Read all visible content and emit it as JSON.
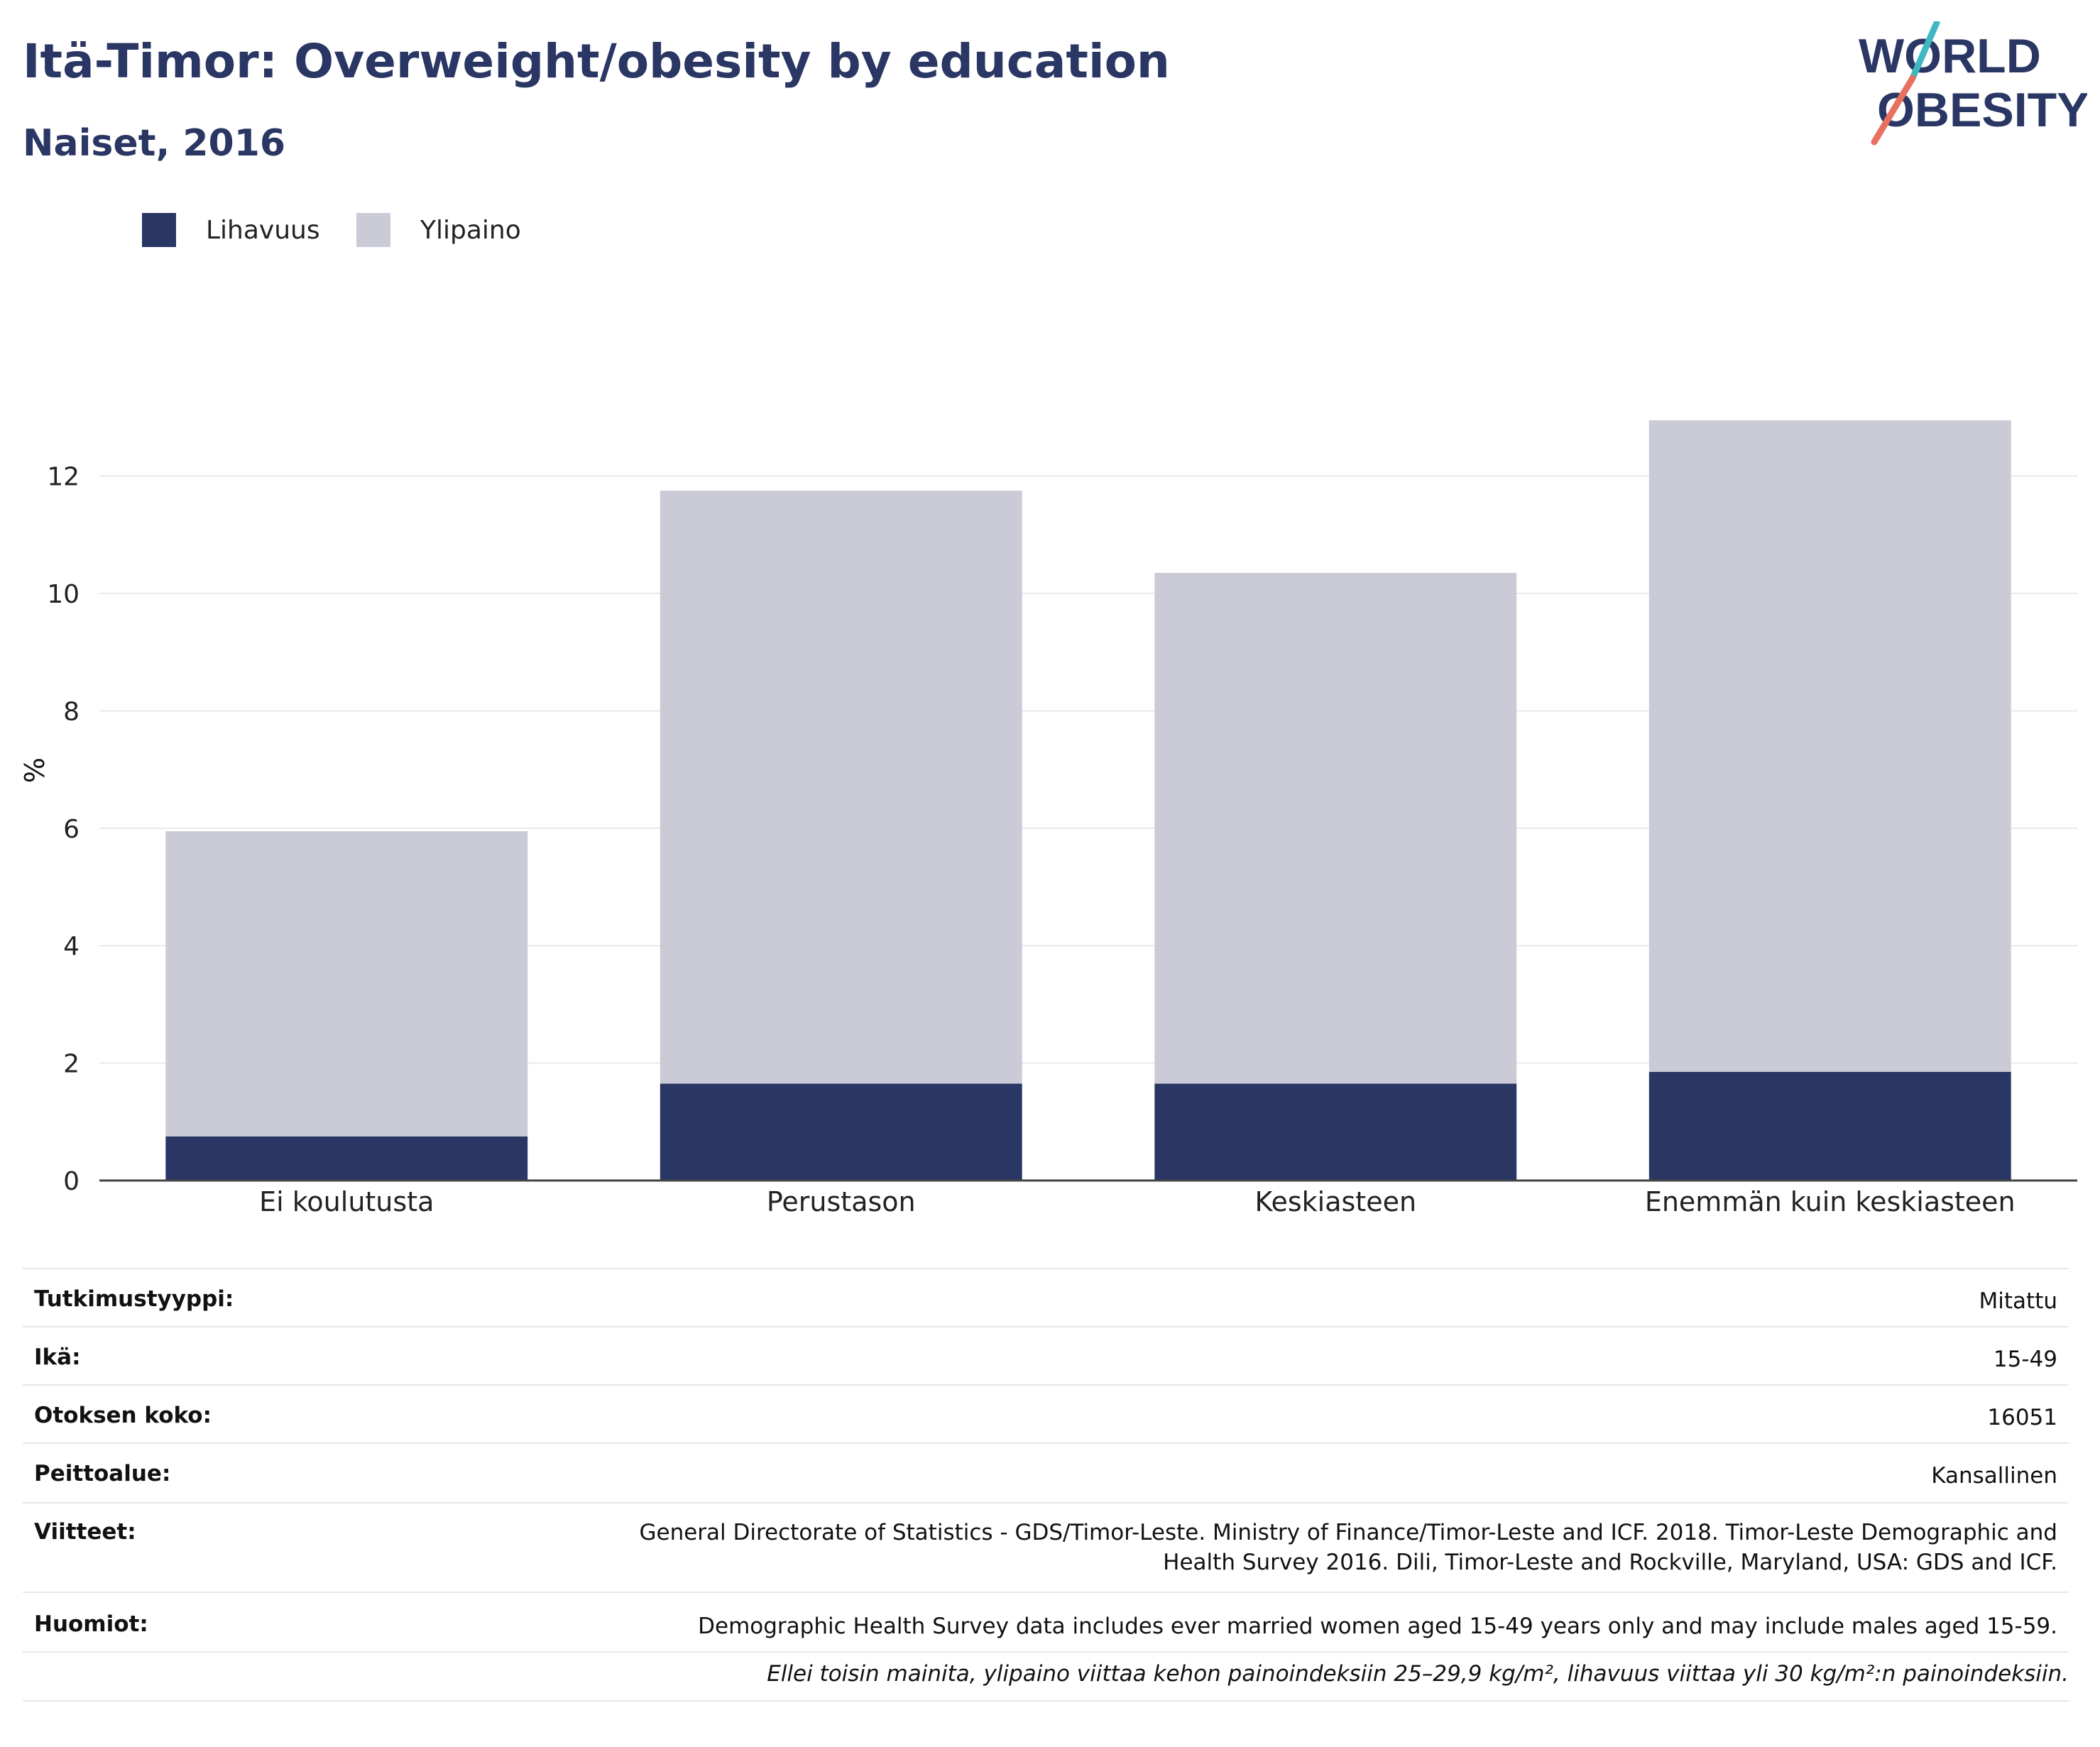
{
  "header": {
    "title": "Itä-Timor: Overweight/obesity by education",
    "subtitle": "Naiset, 2016",
    "logo_line1": "WORLD",
    "logo_line2": "OBESITY"
  },
  "legend": [
    {
      "label": "Lihavuus",
      "color": "#2a3663"
    },
    {
      "label": "Ylipaino",
      "color": "#cacbd7"
    }
  ],
  "chart_data": {
    "type": "bar",
    "stacked": true,
    "categories": [
      "Ei koulutusta",
      "Perustason",
      "Keskiasteen",
      "Enemmän kuin keskiasteen"
    ],
    "series": [
      {
        "name": "Lihavuus",
        "values": [
          0.75,
          1.65,
          1.65,
          1.85
        ],
        "color": "#2a3663"
      },
      {
        "name": "Ylipaino",
        "values": [
          5.2,
          10.1,
          8.7,
          11.1
        ],
        "color": "#cacbd7"
      }
    ],
    "ylabel": "%",
    "ylim": [
      0,
      13.7
    ],
    "yticks": [
      0,
      2,
      4,
      6,
      8,
      10,
      12
    ],
    "grid": true,
    "legend_position": "top-left"
  },
  "info": [
    {
      "label": "Tutkimustyyppi:",
      "value": "Mitattu"
    },
    {
      "label": "Ikä:",
      "value": "15-49"
    },
    {
      "label": "Otoksen koko:",
      "value": "16051"
    },
    {
      "label": "Peittoalue:",
      "value": "Kansallinen"
    },
    {
      "label": "Viitteet:",
      "value_line1": "General Directorate of Statistics - GDS/Timor-Leste. Ministry of Finance/Timor-Leste and ICF. 2018. Timor-Leste Demographic and",
      "value_line2": "Health Survey 2016. Dili, Timor-Leste and Rockville, Maryland, USA: GDS and ICF."
    },
    {
      "label": "Huomiot:",
      "value": "Demographic Health Survey data includes ever married women aged 15-49 years only and may include males aged 15-59."
    }
  ],
  "note": "Ellei toisin mainita, ylipaino viittaa kehon painoindeksiin 25–29,9 kg/m², lihavuus viittaa yli 30 kg/m²:n painoindeksiin."
}
